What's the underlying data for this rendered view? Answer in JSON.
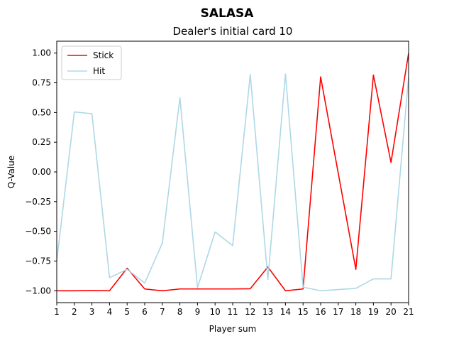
{
  "chart_data": {
    "type": "line",
    "suptitle": "SALASA",
    "title": "Dealer's initial card 10",
    "xlabel": "Player sum",
    "ylabel": "Q-Value",
    "xlim": [
      1,
      21
    ],
    "ylim": [
      -1.1,
      1.1
    ],
    "x": [
      1,
      2,
      3,
      4,
      5,
      6,
      7,
      8,
      9,
      10,
      11,
      12,
      13,
      14,
      15,
      16,
      17,
      18,
      19,
      20,
      21
    ],
    "x_ticks": [
      "1",
      "2",
      "3",
      "4",
      "5",
      "6",
      "7",
      "8",
      "9",
      "10",
      "11",
      "12",
      "13",
      "14",
      "15",
      "16",
      "17",
      "18",
      "19",
      "20",
      "21"
    ],
    "y_ticks": [
      "1.00",
      "0.75",
      "0.50",
      "0.25",
      "0.00",
      "−0.25",
      "−0.50",
      "−0.75",
      "−1.00"
    ],
    "y_tick_values": [
      1.0,
      0.75,
      0.5,
      0.25,
      0.0,
      -0.25,
      -0.5,
      -0.75,
      -1.0
    ],
    "legend_placement": "upper-left",
    "grid": false,
    "series": [
      {
        "name": "Stick",
        "color": "#ff0000",
        "values": [
          -1.0,
          -1.0,
          -0.998,
          -1.0,
          -0.81,
          -0.985,
          -1.0,
          -0.985,
          -0.985,
          -0.985,
          -0.985,
          -0.983,
          -0.8,
          -1.0,
          -0.985,
          0.8,
          -0.01,
          -0.82,
          0.815,
          0.08,
          1.0
        ]
      },
      {
        "name": "Hit",
        "color": "#add8e6",
        "values": [
          -0.75,
          0.505,
          0.49,
          -0.89,
          -0.82,
          -0.935,
          -0.6,
          0.625,
          -0.975,
          -0.505,
          -0.62,
          0.82,
          -0.905,
          0.825,
          -0.97,
          -1.0,
          -0.99,
          -0.98,
          -0.9,
          -0.9,
          0.8
        ]
      }
    ]
  }
}
